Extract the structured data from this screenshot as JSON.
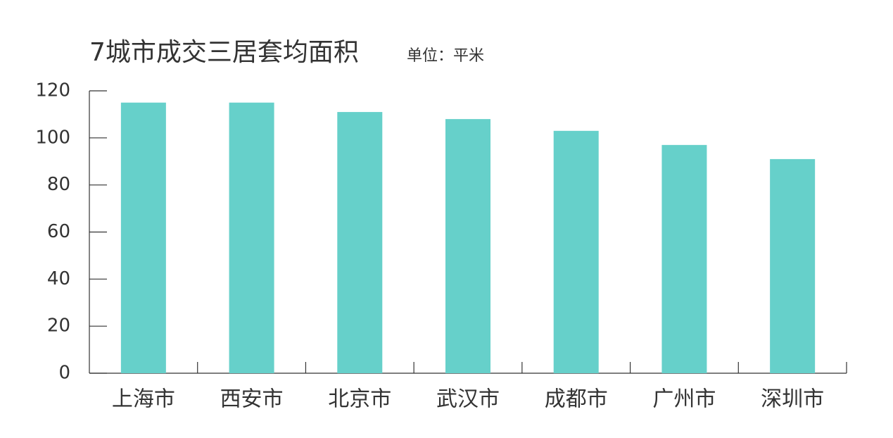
{
  "chart_data": {
    "type": "bar",
    "title": "7城市成交三居套均面积",
    "subtitle": "单位：平米",
    "categories": [
      "上海市",
      "西安市",
      "北京市",
      "武汉市",
      "成都市",
      "广州市",
      "深圳市"
    ],
    "values": [
      115,
      115,
      111,
      108,
      103,
      97,
      91
    ],
    "color": "#66d0ca",
    "ylim": [
      0,
      120
    ],
    "yticks": [
      0,
      20,
      40,
      60,
      80,
      100,
      120
    ],
    "grid": false
  }
}
